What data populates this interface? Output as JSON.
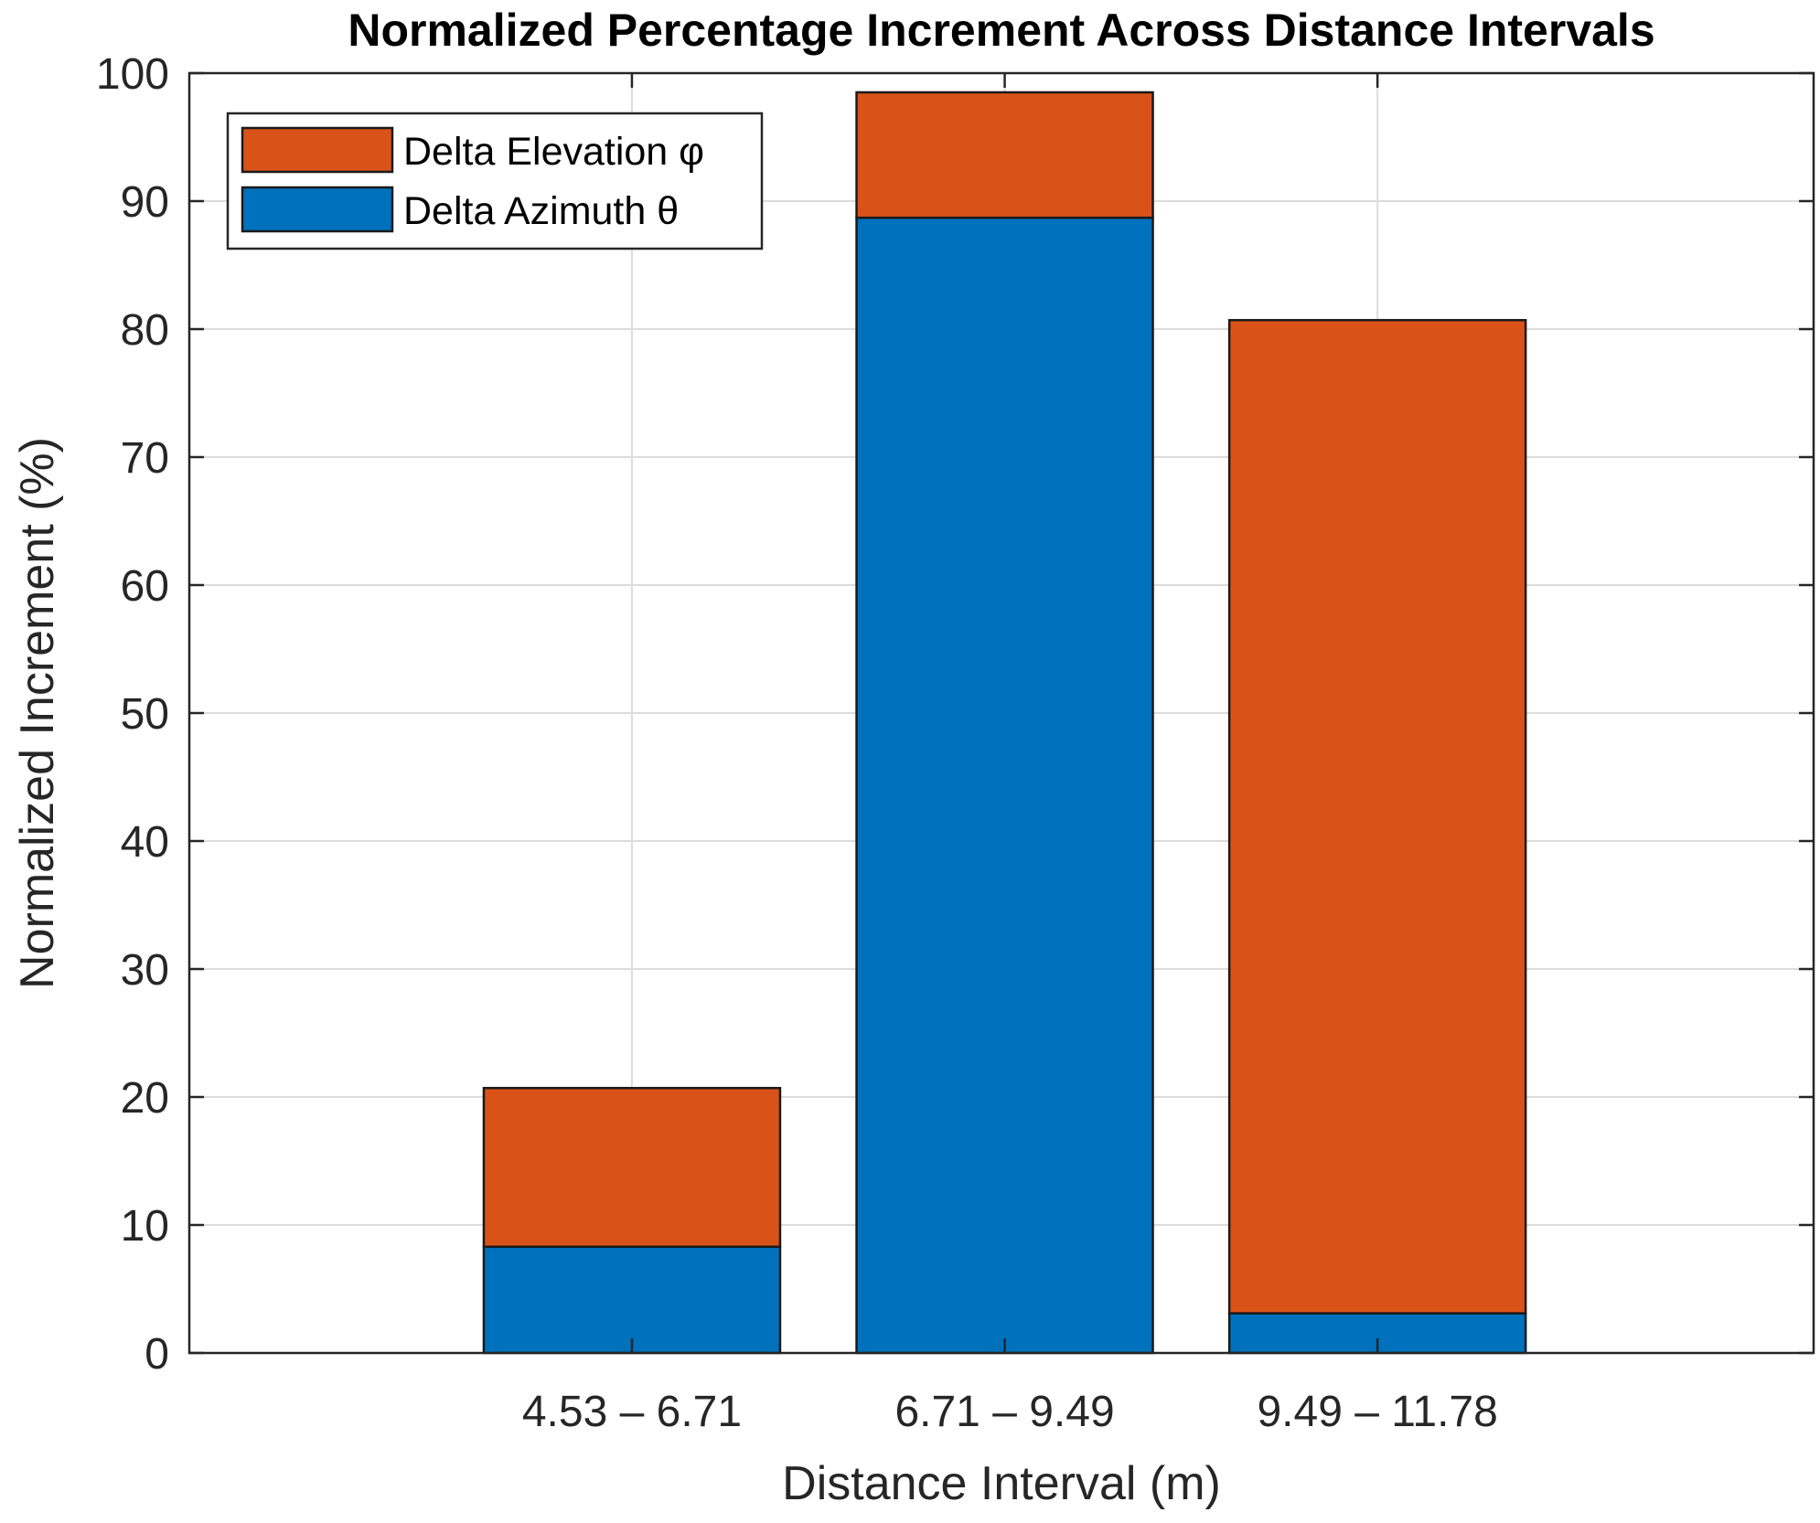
{
  "chart_data": {
    "type": "bar",
    "stacked": true,
    "title": "Normalized Percentage Increment Across Distance Intervals",
    "xlabel": "Distance Interval (m)",
    "ylabel": "Normalized Increment (%)",
    "ylim": [
      0,
      100
    ],
    "yticks": [
      0,
      10,
      20,
      30,
      40,
      50,
      60,
      70,
      80,
      90,
      100
    ],
    "grid": true,
    "legend_position": "top-left",
    "categories": [
      "4.53 – 6.71",
      "6.71 – 9.49",
      "9.49 – 11.78"
    ],
    "series": [
      {
        "name": "Delta Azimuth θ",
        "color": "#0072BD",
        "values": [
          8.3,
          88.7,
          3.1
        ]
      },
      {
        "name": "Delta Elevation φ",
        "color": "#D95319",
        "values": [
          12.4,
          9.8,
          77.6
        ]
      }
    ],
    "legend_order": [
      "Delta Elevation φ",
      "Delta Azimuth θ"
    ]
  }
}
